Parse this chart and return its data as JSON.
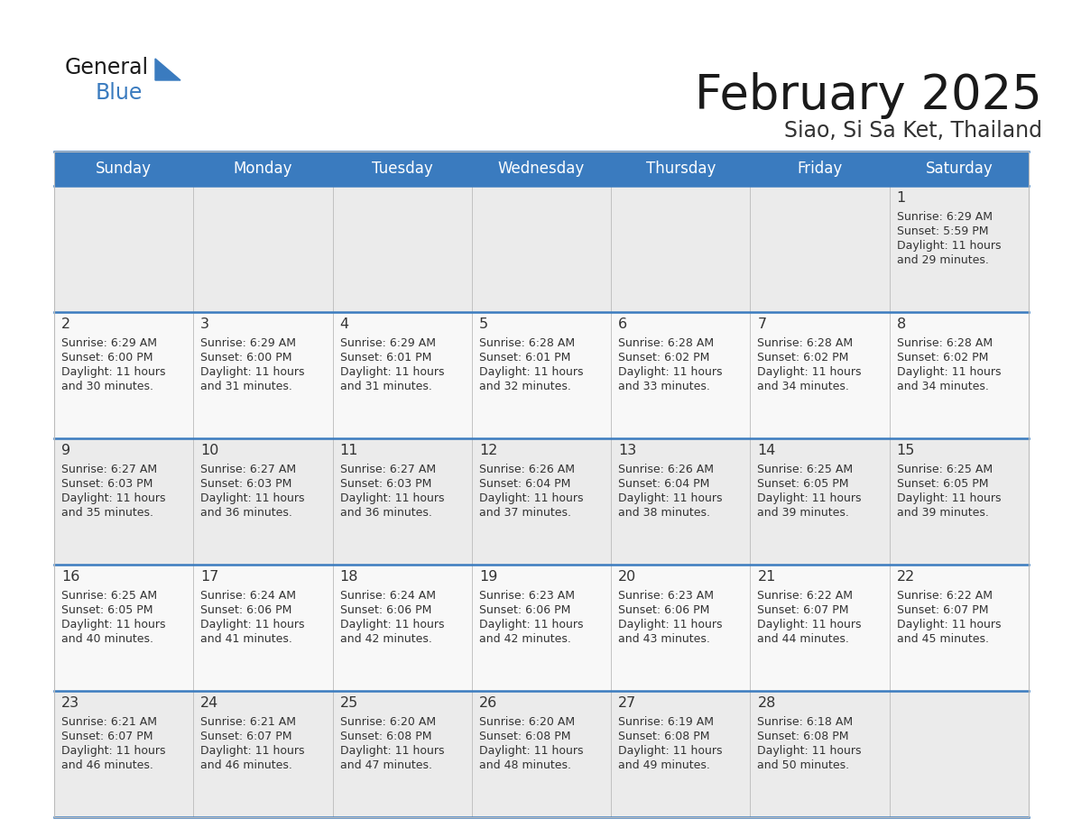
{
  "title": "February 2025",
  "subtitle": "Siao, Si Sa Ket, Thailand",
  "days_of_week": [
    "Sunday",
    "Monday",
    "Tuesday",
    "Wednesday",
    "Thursday",
    "Friday",
    "Saturday"
  ],
  "header_bg_color": "#3a7bbf",
  "header_text_color": "#ffffff",
  "row_bg_odd": "#ebebeb",
  "row_bg_even": "#f8f8f8",
  "separator_color": "#3a7bbf",
  "day_num_color": "#333333",
  "info_text_color": "#333333",
  "title_color": "#1a1a1a",
  "subtitle_color": "#333333",
  "logo_general_color": "#1a1a1a",
  "logo_blue_color": "#3a7bbf",
  "logo_triangle_color": "#3a7bbf",
  "calendar": [
    [
      null,
      null,
      null,
      null,
      null,
      null,
      {
        "day": 1,
        "sunrise": "6:29 AM",
        "sunset": "5:59 PM",
        "daylight": "11 hours and 29 minutes."
      }
    ],
    [
      {
        "day": 2,
        "sunrise": "6:29 AM",
        "sunset": "6:00 PM",
        "daylight": "11 hours and 30 minutes."
      },
      {
        "day": 3,
        "sunrise": "6:29 AM",
        "sunset": "6:00 PM",
        "daylight": "11 hours and 31 minutes."
      },
      {
        "day": 4,
        "sunrise": "6:29 AM",
        "sunset": "6:01 PM",
        "daylight": "11 hours and 31 minutes."
      },
      {
        "day": 5,
        "sunrise": "6:28 AM",
        "sunset": "6:01 PM",
        "daylight": "11 hours and 32 minutes."
      },
      {
        "day": 6,
        "sunrise": "6:28 AM",
        "sunset": "6:02 PM",
        "daylight": "11 hours and 33 minutes."
      },
      {
        "day": 7,
        "sunrise": "6:28 AM",
        "sunset": "6:02 PM",
        "daylight": "11 hours and 34 minutes."
      },
      {
        "day": 8,
        "sunrise": "6:28 AM",
        "sunset": "6:02 PM",
        "daylight": "11 hours and 34 minutes."
      }
    ],
    [
      {
        "day": 9,
        "sunrise": "6:27 AM",
        "sunset": "6:03 PM",
        "daylight": "11 hours and 35 minutes."
      },
      {
        "day": 10,
        "sunrise": "6:27 AM",
        "sunset": "6:03 PM",
        "daylight": "11 hours and 36 minutes."
      },
      {
        "day": 11,
        "sunrise": "6:27 AM",
        "sunset": "6:03 PM",
        "daylight": "11 hours and 36 minutes."
      },
      {
        "day": 12,
        "sunrise": "6:26 AM",
        "sunset": "6:04 PM",
        "daylight": "11 hours and 37 minutes."
      },
      {
        "day": 13,
        "sunrise": "6:26 AM",
        "sunset": "6:04 PM",
        "daylight": "11 hours and 38 minutes."
      },
      {
        "day": 14,
        "sunrise": "6:25 AM",
        "sunset": "6:05 PM",
        "daylight": "11 hours and 39 minutes."
      },
      {
        "day": 15,
        "sunrise": "6:25 AM",
        "sunset": "6:05 PM",
        "daylight": "11 hours and 39 minutes."
      }
    ],
    [
      {
        "day": 16,
        "sunrise": "6:25 AM",
        "sunset": "6:05 PM",
        "daylight": "11 hours and 40 minutes."
      },
      {
        "day": 17,
        "sunrise": "6:24 AM",
        "sunset": "6:06 PM",
        "daylight": "11 hours and 41 minutes."
      },
      {
        "day": 18,
        "sunrise": "6:24 AM",
        "sunset": "6:06 PM",
        "daylight": "11 hours and 42 minutes."
      },
      {
        "day": 19,
        "sunrise": "6:23 AM",
        "sunset": "6:06 PM",
        "daylight": "11 hours and 42 minutes."
      },
      {
        "day": 20,
        "sunrise": "6:23 AM",
        "sunset": "6:06 PM",
        "daylight": "11 hours and 43 minutes."
      },
      {
        "day": 21,
        "sunrise": "6:22 AM",
        "sunset": "6:07 PM",
        "daylight": "11 hours and 44 minutes."
      },
      {
        "day": 22,
        "sunrise": "6:22 AM",
        "sunset": "6:07 PM",
        "daylight": "11 hours and 45 minutes."
      }
    ],
    [
      {
        "day": 23,
        "sunrise": "6:21 AM",
        "sunset": "6:07 PM",
        "daylight": "11 hours and 46 minutes."
      },
      {
        "day": 24,
        "sunrise": "6:21 AM",
        "sunset": "6:07 PM",
        "daylight": "11 hours and 46 minutes."
      },
      {
        "day": 25,
        "sunrise": "6:20 AM",
        "sunset": "6:08 PM",
        "daylight": "11 hours and 47 minutes."
      },
      {
        "day": 26,
        "sunrise": "6:20 AM",
        "sunset": "6:08 PM",
        "daylight": "11 hours and 48 minutes."
      },
      {
        "day": 27,
        "sunrise": "6:19 AM",
        "sunset": "6:08 PM",
        "daylight": "11 hours and 49 minutes."
      },
      {
        "day": 28,
        "sunrise": "6:18 AM",
        "sunset": "6:08 PM",
        "daylight": "11 hours and 50 minutes."
      },
      null
    ]
  ]
}
